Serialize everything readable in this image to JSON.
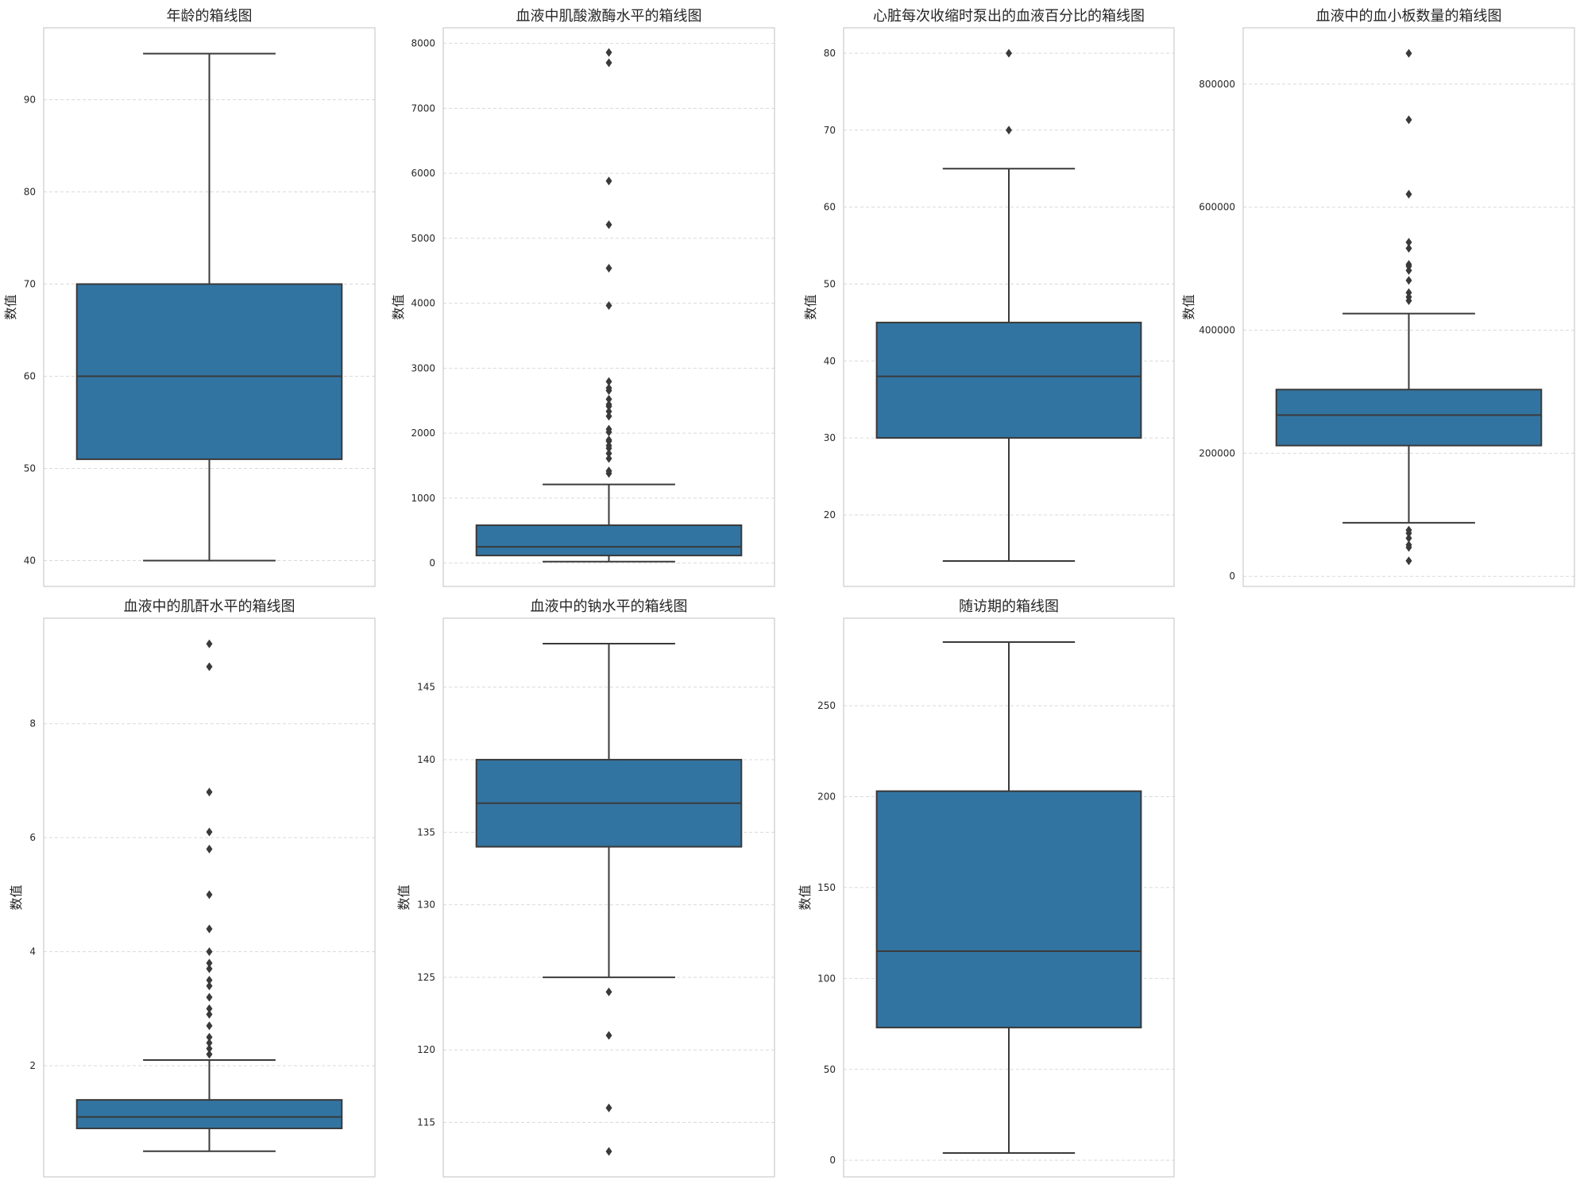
{
  "colors": {
    "box_fill": "#3274a1",
    "line": "#3a3a3a",
    "grid": "#d9d9d9",
    "frame": "#cccccc",
    "text": "#262626"
  },
  "chart_data": [
    {
      "type": "box",
      "title": "年龄的箱线图",
      "xlabel": "",
      "ylabel": "数值",
      "ylim": [
        37.2,
        97.8
      ],
      "yticks": [
        40,
        50,
        60,
        70,
        80,
        90
      ],
      "ytick_labels": [
        "40",
        "50",
        "60",
        "70",
        "80",
        "90"
      ],
      "grid": true,
      "box": {
        "whisker_low": 40,
        "q1": 51,
        "median": 60,
        "q3": 70,
        "whisker_high": 95
      },
      "outliers": []
    },
    {
      "type": "box",
      "title": "血液中肌酸激酶水平的箱线图",
      "xlabel": "",
      "ylabel": "数值",
      "ylim": [
        -360,
        8240
      ],
      "yticks": [
        0,
        1000,
        2000,
        3000,
        4000,
        5000,
        6000,
        7000,
        8000
      ],
      "ytick_labels": [
        "0",
        "1000",
        "2000",
        "3000",
        "4000",
        "5000",
        "6000",
        "7000",
        "8000"
      ],
      "grid": true,
      "box": {
        "whisker_low": 23,
        "q1": 116,
        "median": 250,
        "q3": 582,
        "whisker_high": 1211
      },
      "outliers": [
        1380,
        1419,
        1610,
        1688,
        1767,
        1808,
        1876,
        1896,
        2017,
        2060,
        2261,
        2334,
        2413,
        2442,
        2522,
        2656,
        2695,
        2794,
        3964,
        4540,
        5209,
        5882,
        7702,
        7861
      ]
    },
    {
      "type": "box",
      "title": "心脏每次收缩时泵出的血液百分比的箱线图",
      "xlabel": "",
      "ylabel": "数值",
      "ylim": [
        10.7,
        83.3
      ],
      "yticks": [
        20,
        30,
        40,
        50,
        60,
        70,
        80
      ],
      "ytick_labels": [
        "20",
        "30",
        "40",
        "50",
        "60",
        "70",
        "80"
      ],
      "grid": true,
      "box": {
        "whisker_low": 14,
        "q1": 30,
        "median": 38,
        "q3": 45,
        "whisker_high": 65
      },
      "outliers": [
        70,
        80
      ]
    },
    {
      "type": "box",
      "title": "血液中的血小板数量的箱线图",
      "xlabel": "",
      "ylabel": "数值",
      "ylim": [
        -16500,
        891500
      ],
      "yticks": [
        0,
        200000,
        400000,
        600000,
        800000
      ],
      "ytick_labels": [
        "0",
        "200000",
        "400000",
        "600000",
        "800000"
      ],
      "grid": true,
      "box": {
        "whisker_low": 87000,
        "q1": 212500,
        "median": 262000,
        "q3": 303500,
        "whisker_high": 427000
      },
      "outliers": [
        25100,
        47000,
        51000,
        62000,
        70000,
        75000,
        448000,
        454000,
        461000,
        481000,
        497000,
        504000,
        507000,
        533000,
        543000,
        621000,
        742000,
        850000
      ]
    },
    {
      "type": "box",
      "title": "血液中的肌酐水平的箱线图",
      "xlabel": "",
      "ylabel": "数值",
      "ylim": [
        0.05,
        9.85
      ],
      "yticks": [
        2,
        4,
        6,
        8
      ],
      "ytick_labels": [
        "2",
        "4",
        "6",
        "8"
      ],
      "grid": true,
      "box": {
        "whisker_low": 0.5,
        "q1": 0.9,
        "median": 1.1,
        "q3": 1.4,
        "whisker_high": 2.1
      },
      "outliers": [
        2.2,
        2.3,
        2.4,
        2.5,
        2.7,
        2.9,
        3.0,
        3.2,
        3.4,
        3.5,
        3.7,
        3.8,
        4.0,
        4.4,
        5.0,
        5.8,
        6.1,
        6.8,
        9.0,
        9.4
      ]
    },
    {
      "type": "box",
      "title": "血液中的钠水平的箱线图",
      "xlabel": "",
      "ylabel": "数值",
      "ylim": [
        111.25,
        149.75
      ],
      "yticks": [
        115,
        120,
        125,
        130,
        135,
        140,
        145
      ],
      "ytick_labels": [
        "115",
        "120",
        "125",
        "130",
        "135",
        "140",
        "145"
      ],
      "grid": true,
      "box": {
        "whisker_low": 125,
        "q1": 134,
        "median": 137,
        "q3": 140,
        "whisker_high": 148
      },
      "outliers": [
        113,
        116,
        121,
        124
      ]
    },
    {
      "type": "box",
      "title": "随访期的箱线图",
      "xlabel": "",
      "ylabel": "数值",
      "ylim": [
        -9.1,
        298.1
      ],
      "yticks": [
        0,
        50,
        100,
        150,
        200,
        250
      ],
      "ytick_labels": [
        "0",
        "50",
        "100",
        "150",
        "200",
        "250"
      ],
      "grid": true,
      "box": {
        "whisker_low": 4,
        "q1": 73,
        "median": 115,
        "q3": 203,
        "whisker_high": 285
      },
      "outliers": []
    }
  ]
}
